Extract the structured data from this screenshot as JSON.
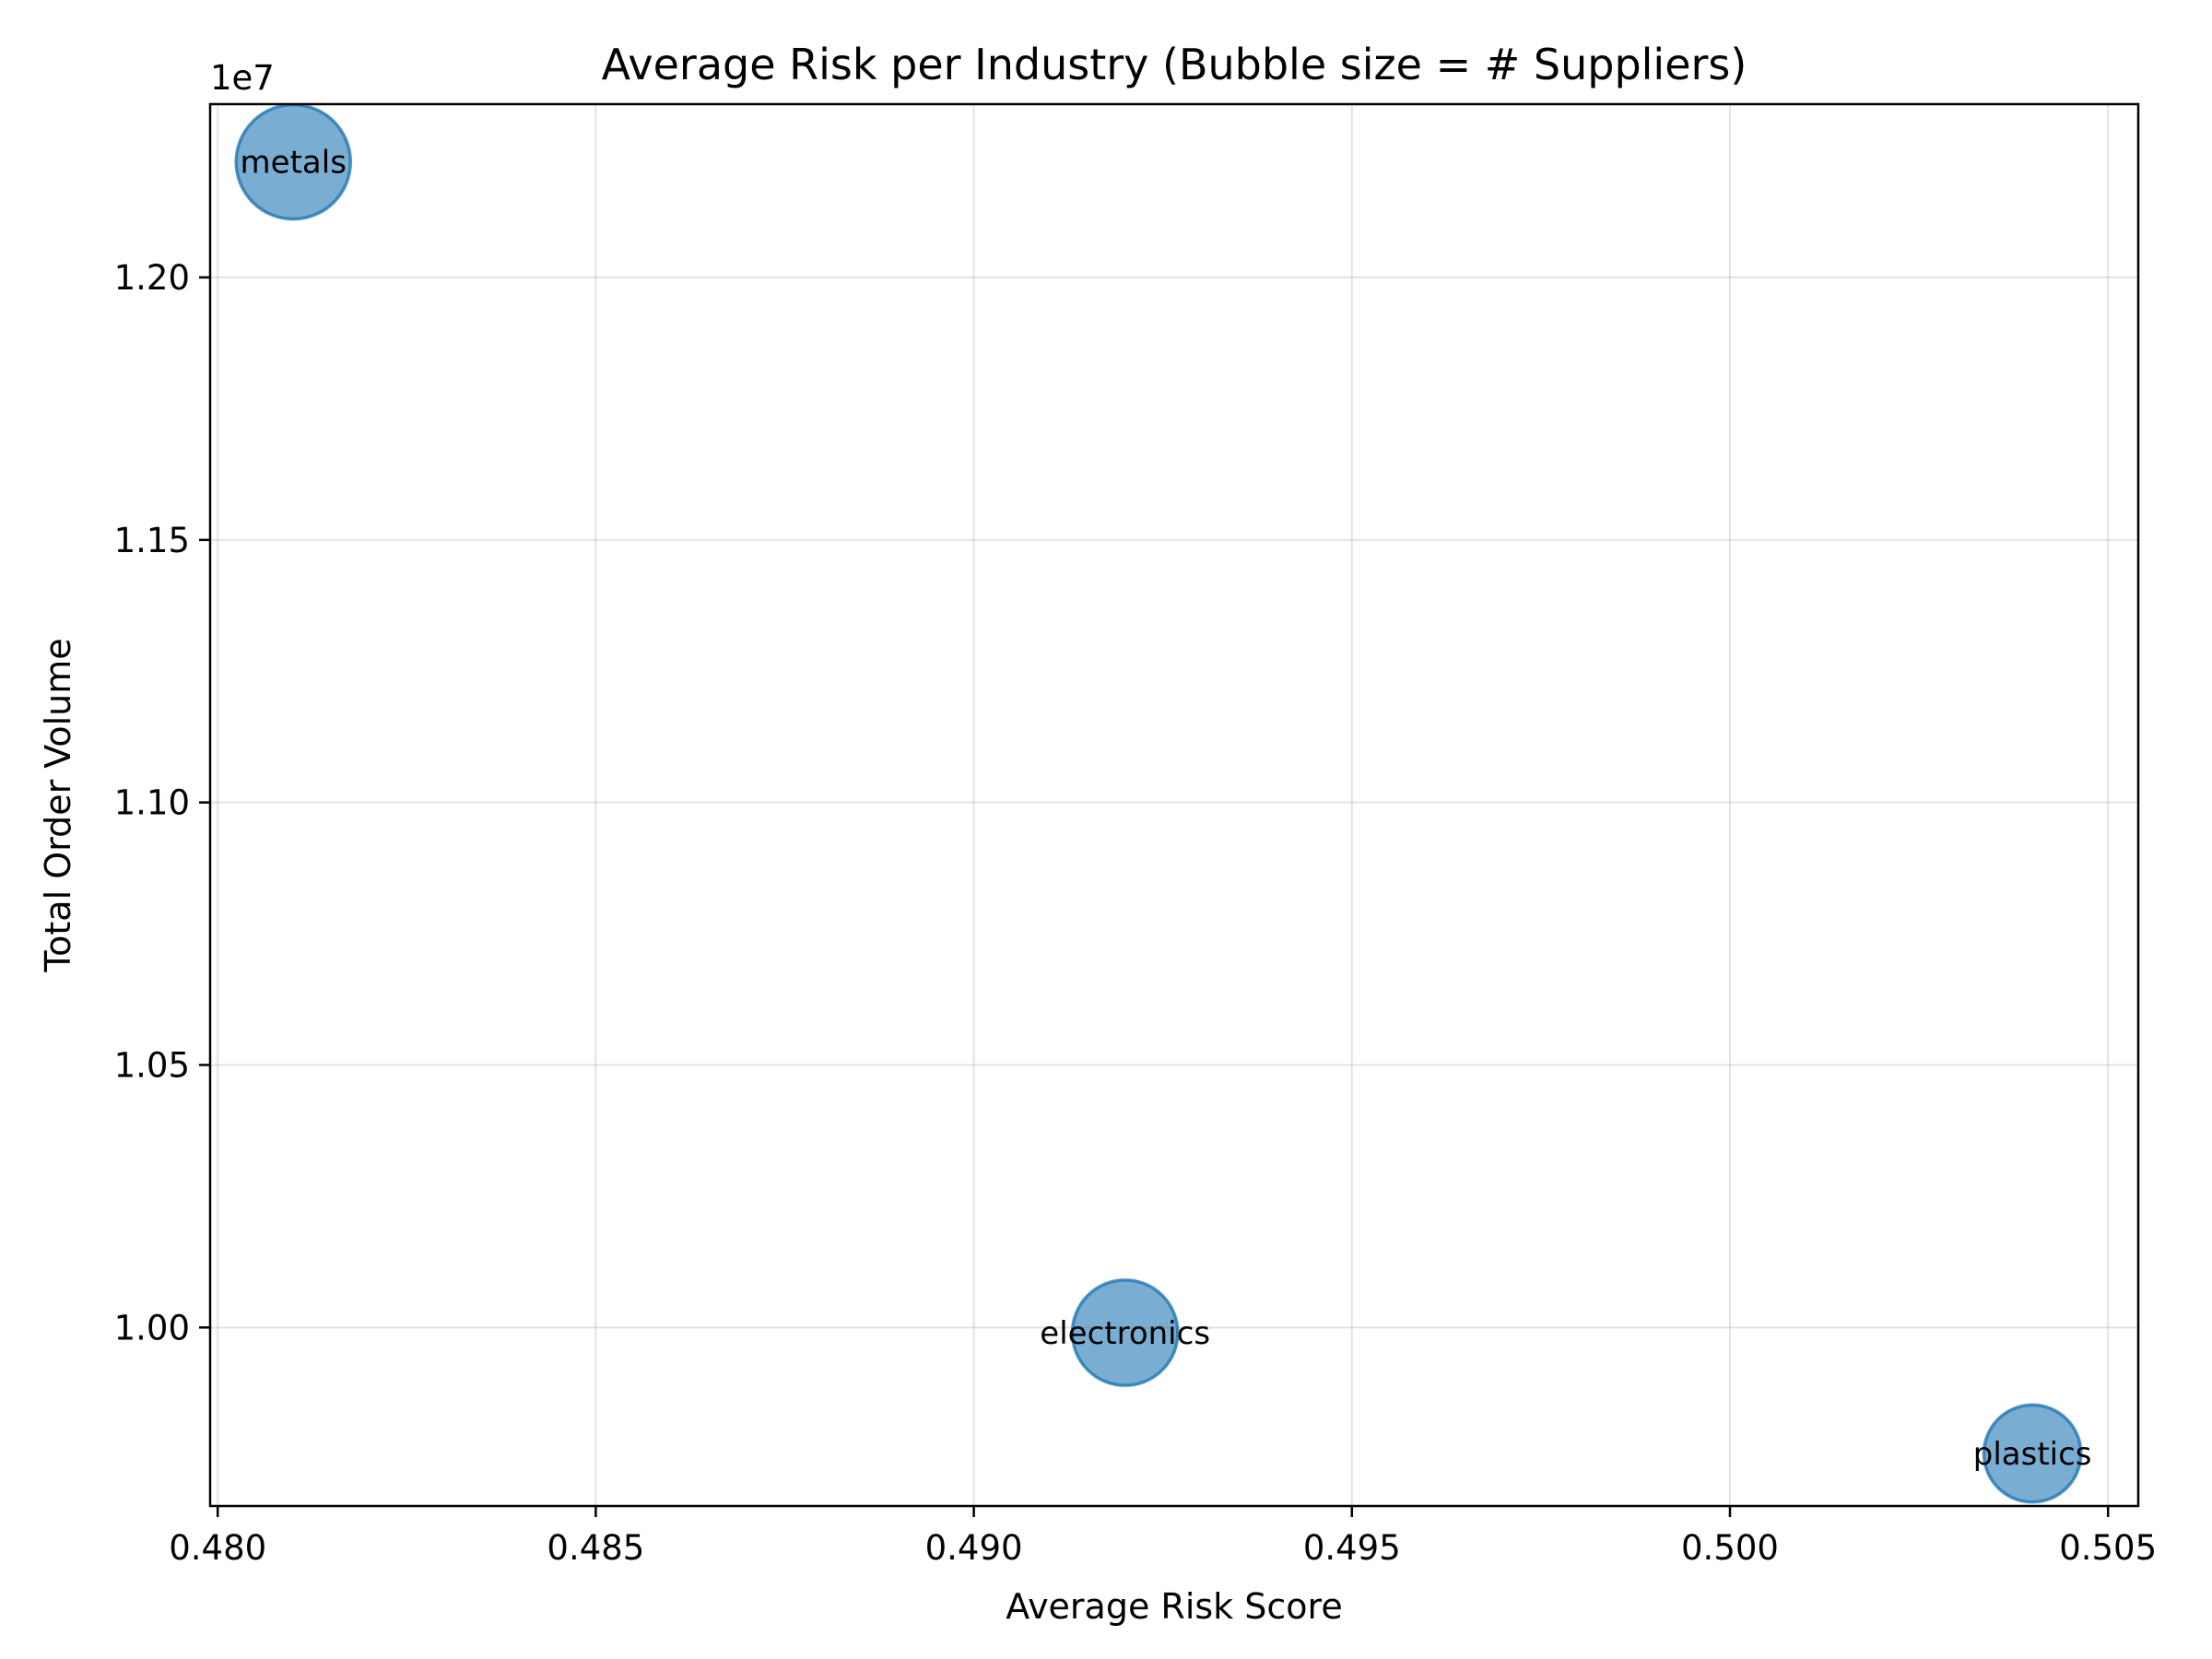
{
  "chart_data": {
    "type": "scatter",
    "title": "Average Risk per Industry (Bubble size = # Suppliers)",
    "xlabel": "Average Risk Score",
    "ylabel": "Total Order Volume",
    "y_offset_label": "1e7",
    "xlim": [
      0.4799,
      0.5054
    ],
    "ylim": [
      9.66,
      12.33
    ],
    "x_ticks": [
      0.48,
      0.485,
      0.49,
      0.495,
      0.5,
      0.505
    ],
    "x_tick_labels": [
      "0.480",
      "0.485",
      "0.490",
      "0.495",
      "0.500",
      "0.505"
    ],
    "y_ticks": [
      10.0,
      10.5,
      11.0,
      11.5,
      12.0
    ],
    "y_tick_labels": [
      "1.00",
      "1.05",
      "1.10",
      "1.15",
      "1.20"
    ],
    "grid": true,
    "color": "#1f77b4",
    "points": [
      {
        "label": "metals",
        "x": 0.481,
        "y": 12.22,
        "size": 1.0
      },
      {
        "label": "electronics",
        "x": 0.492,
        "y": 9.99,
        "size": 0.85
      },
      {
        "label": "plastics",
        "x": 0.504,
        "y": 9.76,
        "size": 0.72
      }
    ]
  }
}
